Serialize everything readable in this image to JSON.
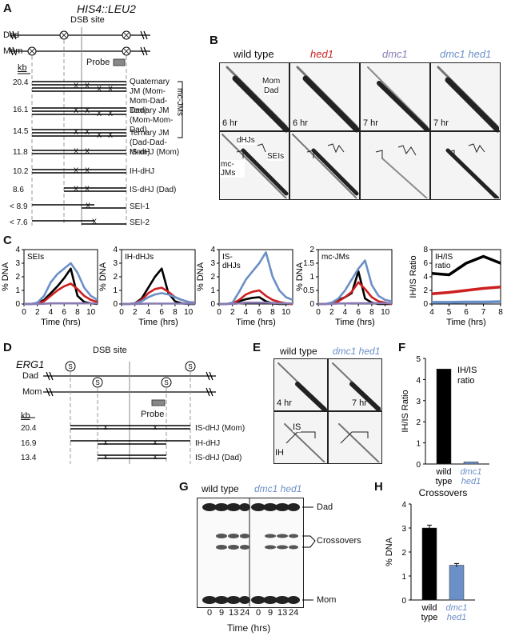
{
  "panelA": {
    "letter": "A",
    "title": "HIS4::LEU2",
    "dsb": "DSB site",
    "dad": "Dad",
    "mom": "Mom",
    "probe": "Probe",
    "kb": "kb",
    "mcjms_bracket": "mc-JMs",
    "species": [
      {
        "kb": "20.4",
        "label": "Quaternary JM (Mom-Mom-Dad-Dad)"
      },
      {
        "kb": "16.1",
        "label": "Ternary JM (Mom-Mom-Dad)"
      },
      {
        "kb": "14.5",
        "label": "Ternary JM (Dad-Dad-Mom)"
      },
      {
        "kb": "11.8",
        "label": "IS-dHJ (Mom)"
      },
      {
        "kb": "10.2",
        "label": "IH-dHJ"
      },
      {
        "kb": "8.6",
        "label": "IS-dHJ (Dad)"
      },
      {
        "kb": "< 8.9",
        "label": "SEI-1"
      },
      {
        "kb": "< 7.6",
        "label": "SEI-2"
      }
    ]
  },
  "panelB": {
    "letter": "B",
    "columns": [
      {
        "label": "wild type",
        "color": "#000000",
        "italic": false,
        "time": "6 hr"
      },
      {
        "label": "hed1",
        "color": "#cc1f1f",
        "italic": true,
        "time": "6 hr"
      },
      {
        "label": "dmc1",
        "color": "#8a7bb3",
        "italic": true,
        "time": "7 hr"
      },
      {
        "label": "dmc1 hed1",
        "color": "#6b8fc7",
        "italic": true,
        "time": "7 hr"
      }
    ],
    "annotations": {
      "mom": "Mom",
      "dad": "Dad",
      "dhjs": "dHJs",
      "mcjms": "mc-JMs",
      "seis": "SEIs"
    }
  },
  "panelC": {
    "letter": "C",
    "ylabel": "% DNA",
    "xlabel": "Time (hrs)",
    "ratio_ylabel": "IH/IS Ratio",
    "ratio_xlabel": "Time (hrs)"
  },
  "panelD": {
    "letter": "D",
    "title": "ERG1",
    "dsb": "DSB site",
    "dad": "Dad",
    "mom": "Mom",
    "probe": "Probe",
    "kb": "kb",
    "species": [
      {
        "kb": "20.4",
        "label": "IS-dHJ (Mom)"
      },
      {
        "kb": "16.9",
        "label": "IH-dHJ"
      },
      {
        "kb": "13.4",
        "label": "IS-dHJ (Dad)"
      }
    ]
  },
  "panelE": {
    "letter": "E",
    "col1": "wild type",
    "col2": "dmc1 hed1",
    "time1": "4 hr",
    "time2": "7 hr",
    "is": "IS",
    "ih": "IH"
  },
  "panelF": {
    "letter": "F",
    "ylabel": "IH/IS Ratio",
    "inset": "IH/IS ratio",
    "cat1": "wild type",
    "cat2": "dmc1 hed1"
  },
  "panelG": {
    "letter": "G",
    "col1": "wild type",
    "col2": "dmc1 hed1",
    "dad": "Dad",
    "crossovers": "Crossovers",
    "mom": "Mom",
    "xlabel": "Time (hrs)",
    "lanes": [
      "0",
      "9",
      "13",
      "24",
      "0",
      "9",
      "13",
      "24"
    ]
  },
  "panelH": {
    "letter": "H",
    "title": "Crossovers",
    "ylabel": "% DNA",
    "cat1": "wild type",
    "cat2": "dmc1 hed1"
  },
  "chart_data": [
    {
      "type": "line",
      "title": "SEIs",
      "xlabel": "Time (hrs)",
      "ylabel": "% DNA",
      "xlim": [
        0,
        11
      ],
      "ylim": [
        0,
        4
      ],
      "x": [
        0,
        1,
        2,
        3,
        4,
        5,
        6,
        7,
        8,
        9,
        10,
        11
      ],
      "series": [
        {
          "color": "#000000",
          "values": [
            0,
            0,
            0.05,
            0.3,
            0.8,
            1.3,
            1.9,
            2.6,
            0.6,
            0.15,
            0.05,
            0
          ]
        },
        {
          "color": "#cc1f1f",
          "values": [
            0,
            0,
            0.05,
            0.2,
            0.6,
            1.0,
            1.3,
            1.5,
            1.1,
            0.6,
            0.3,
            0.15
          ]
        },
        {
          "color": "#6b8fc7",
          "values": [
            0,
            0,
            0.1,
            0.6,
            1.6,
            2.2,
            2.6,
            3.0,
            2.3,
            1.2,
            0.6,
            0.3
          ]
        },
        {
          "color": "#8a7bb3",
          "values": [
            0,
            0,
            0,
            0.02,
            0.05,
            0.05,
            0.05,
            0.05,
            0.05,
            0.05,
            0.05,
            0.05
          ]
        }
      ]
    },
    {
      "type": "line",
      "title": "IH-dHJs",
      "xlabel": "Time (hrs)",
      "ylabel": "% DNA",
      "xlim": [
        0,
        11
      ],
      "ylim": [
        0,
        4
      ],
      "x": [
        0,
        1,
        2,
        3,
        4,
        5,
        6,
        7,
        8,
        9,
        10,
        11
      ],
      "series": [
        {
          "color": "#000000",
          "values": [
            0,
            0,
            0.05,
            0.4,
            1.2,
            2.0,
            2.6,
            0.8,
            0.2,
            0.05,
            0,
            0
          ]
        },
        {
          "color": "#cc1f1f",
          "values": [
            0,
            0,
            0.05,
            0.3,
            0.8,
            1.1,
            1.2,
            0.9,
            0.5,
            0.3,
            0.15,
            0.1
          ]
        },
        {
          "color": "#6b8fc7",
          "values": [
            0,
            0,
            0.05,
            0.2,
            0.5,
            0.7,
            0.8,
            0.7,
            0.5,
            0.3,
            0.15,
            0.1
          ]
        },
        {
          "color": "#8a7bb3",
          "values": [
            0,
            0,
            0,
            0.02,
            0.03,
            0.03,
            0.03,
            0.03,
            0.03,
            0.03,
            0.03,
            0.03
          ]
        }
      ]
    },
    {
      "type": "line",
      "title": "IS-dHJs",
      "xlabel": "Time (hrs)",
      "ylabel": "% DNA",
      "xlim": [
        0,
        11
      ],
      "ylim": [
        0,
        4
      ],
      "x": [
        0,
        1,
        2,
        3,
        4,
        5,
        6,
        7,
        8,
        9,
        10,
        11
      ],
      "series": [
        {
          "color": "#000000",
          "values": [
            0,
            0,
            0.05,
            0.2,
            0.35,
            0.45,
            0.5,
            0.2,
            0.05,
            0,
            0,
            0
          ]
        },
        {
          "color": "#cc1f1f",
          "values": [
            0,
            0,
            0.05,
            0.3,
            0.7,
            0.9,
            1.0,
            0.6,
            0.3,
            0.15,
            0.05,
            0
          ]
        },
        {
          "color": "#6b8fc7",
          "values": [
            0,
            0,
            0.1,
            0.9,
            1.8,
            2.4,
            3.0,
            3.8,
            2.0,
            1.0,
            0.5,
            0.3
          ]
        },
        {
          "color": "#8a7bb3",
          "values": [
            0,
            0,
            0,
            0.05,
            0.1,
            0.1,
            0.1,
            0.1,
            0.08,
            0.05,
            0.05,
            0.05
          ]
        }
      ]
    },
    {
      "type": "line",
      "title": "mc-JMs",
      "xlabel": "Time (hrs)",
      "ylabel": "% DNA",
      "xlim": [
        0,
        11
      ],
      "ylim": [
        0,
        2
      ],
      "x": [
        0,
        1,
        2,
        3,
        4,
        5,
        6,
        7,
        8,
        9,
        10,
        11
      ],
      "series": [
        {
          "color": "#000000",
          "values": [
            0,
            0,
            0.02,
            0.15,
            0.25,
            0.4,
            1.2,
            0.2,
            0.05,
            0,
            0,
            0
          ]
        },
        {
          "color": "#cc1f1f",
          "values": [
            0,
            0,
            0.02,
            0.1,
            0.25,
            0.45,
            0.8,
            0.55,
            0.25,
            0.1,
            0.05,
            0
          ]
        },
        {
          "color": "#6b8fc7",
          "values": [
            0,
            0,
            0.05,
            0.2,
            0.5,
            0.9,
            1.3,
            1.6,
            0.7,
            0.3,
            0.15,
            0.1
          ]
        },
        {
          "color": "#8a7bb3",
          "values": [
            0,
            0,
            0,
            0.02,
            0.02,
            0.03,
            0.03,
            0.03,
            0.03,
            0.03,
            0.03,
            0.03
          ]
        }
      ]
    },
    {
      "type": "line",
      "title": "IH/IS ratio",
      "xlabel": "Time (hrs)",
      "ylabel": "IH/IS Ratio",
      "xlim": [
        4,
        8
      ],
      "ylim": [
        0,
        8
      ],
      "x": [
        4,
        5,
        6,
        7,
        8
      ],
      "series": [
        {
          "color": "#000000",
          "values": [
            4.5,
            4.3,
            6.0,
            7.0,
            6.0
          ]
        },
        {
          "color": "#cc1f1f",
          "values": [
            1.5,
            1.7,
            2.0,
            2.3,
            2.5
          ]
        },
        {
          "color": "#6b8fc7",
          "values": [
            0.25,
            0.25,
            0.3,
            0.3,
            0.35
          ]
        }
      ]
    },
    {
      "type": "bar",
      "title": "IH/IS ratio",
      "ylabel": "IH/IS Ratio",
      "ylim": [
        0,
        5
      ],
      "categories": [
        "wild type",
        "dmc1 hed1"
      ],
      "values": [
        4.5,
        0.1
      ],
      "colors": [
        "#000000",
        "#6b8fc7"
      ]
    },
    {
      "type": "bar",
      "title": "Crossovers",
      "ylabel": "% DNA",
      "ylim": [
        0,
        4
      ],
      "categories": [
        "wild type",
        "dmc1 hed1"
      ],
      "values": [
        3.0,
        1.45
      ],
      "errors": [
        0.12,
        0.07
      ],
      "colors": [
        "#000000",
        "#6b8fc7"
      ]
    }
  ]
}
